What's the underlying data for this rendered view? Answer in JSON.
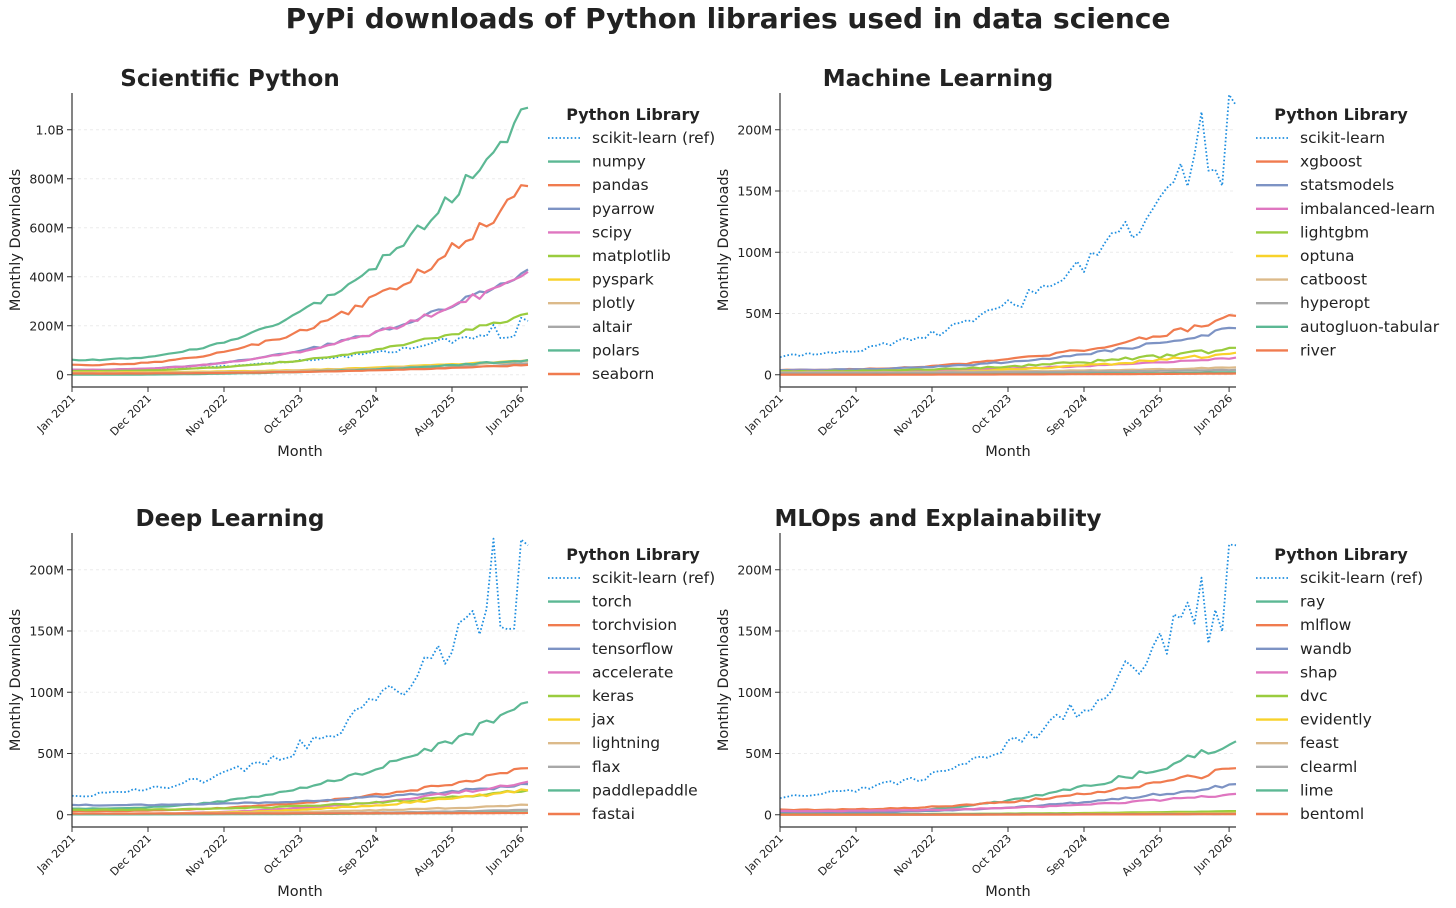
{
  "title": "PyPi downloads of Python libraries used in data science",
  "legend_title": "Python Library",
  "xlabel": "Month",
  "ylabel": "Monthly Downloads",
  "x_ticks": [
    "Jan 2021",
    "Dec 2021",
    "Nov 2022",
    "Oct 2023",
    "Sep 2024",
    "Aug 2025",
    "Jun 2026"
  ],
  "colors": {
    "ref": "#1f8fe0",
    "palette": [
      "#5cb894",
      "#f07b4f",
      "#7d93c4",
      "#df76c0",
      "#9acc3e",
      "#f8d22a",
      "#dcba8a",
      "#a8a8a8"
    ]
  },
  "chart_data": [
    {
      "type": "line",
      "title": "Scientific Python",
      "xlabel": "Month",
      "ylabel": "Monthly Downloads",
      "x_range": [
        "Jan 2021",
        "Jul 2026"
      ],
      "ylim": [
        -50000000,
        1150000000
      ],
      "y_ticks": [
        0,
        200000000,
        400000000,
        600000000,
        800000000,
        1000000000
      ],
      "y_tick_labels": [
        "0",
        "200M",
        "400M",
        "600M",
        "800M",
        "1.0B"
      ],
      "legend_placement": "right",
      "grid": "horizontal",
      "series": [
        {
          "name": "scikit-learn (ref)",
          "color": "#1f8fe0",
          "dash": "dotted",
          "start": 15000000,
          "end": 220000000,
          "noise": 0.1
        },
        {
          "name": "numpy",
          "color": "#5cb894",
          "start": 60000000,
          "end": 1090000000,
          "noise": 0.04
        },
        {
          "name": "pandas",
          "color": "#f07b4f",
          "start": 40000000,
          "end": 770000000,
          "noise": 0.05
        },
        {
          "name": "pyarrow",
          "color": "#7d93c4",
          "start": 20000000,
          "end": 430000000,
          "noise": 0.05
        },
        {
          "name": "scipy",
          "color": "#df76c0",
          "start": 20000000,
          "end": 420000000,
          "noise": 0.05
        },
        {
          "name": "matplotlib",
          "color": "#9acc3e",
          "start": 15000000,
          "end": 250000000,
          "noise": 0.05
        },
        {
          "name": "pyspark",
          "color": "#f8d22a",
          "start": 10000000,
          "end": 60000000,
          "noise": 0.06
        },
        {
          "name": "plotly",
          "color": "#dcba8a",
          "start": 8000000,
          "end": 55000000,
          "noise": 0.06
        },
        {
          "name": "altair",
          "color": "#a8a8a8",
          "start": 4000000,
          "end": 45000000,
          "noise": 0.06
        },
        {
          "name": "polars",
          "color": "#5cb894",
          "start": 100000,
          "end": 60000000,
          "noise": 0.08
        },
        {
          "name": "seaborn",
          "color": "#f07b4f",
          "start": 5000000,
          "end": 40000000,
          "noise": 0.06
        }
      ]
    },
    {
      "type": "line",
      "title": "Machine Learning",
      "xlabel": "Month",
      "ylabel": "Monthly Downloads",
      "x_range": [
        "Jan 2021",
        "Jul 2026"
      ],
      "ylim": [
        -10000000,
        230000000
      ],
      "y_ticks": [
        0,
        50000000,
        100000000,
        150000000,
        200000000
      ],
      "y_tick_labels": [
        "0",
        "50M",
        "100M",
        "150M",
        "200M"
      ],
      "legend_placement": "right",
      "grid": "horizontal",
      "series": [
        {
          "name": "scikit-learn",
          "color": "#1f8fe0",
          "dash": "dotted",
          "start": 15000000,
          "end": 220000000,
          "noise": 0.1
        },
        {
          "name": "xgboost",
          "color": "#f07b4f",
          "start": 4000000,
          "end": 48000000,
          "noise": 0.06
        },
        {
          "name": "statsmodels",
          "color": "#7d93c4",
          "start": 4000000,
          "end": 38000000,
          "noise": 0.06
        },
        {
          "name": "imbalanced-learn",
          "color": "#df76c0",
          "start": 3000000,
          "end": 14000000,
          "noise": 0.06
        },
        {
          "name": "lightgbm",
          "color": "#9acc3e",
          "start": 3000000,
          "end": 22000000,
          "noise": 0.12
        },
        {
          "name": "optuna",
          "color": "#f8d22a",
          "start": 1000000,
          "end": 18000000,
          "noise": 0.1
        },
        {
          "name": "catboost",
          "color": "#dcba8a",
          "start": 2000000,
          "end": 6000000,
          "noise": 0.06
        },
        {
          "name": "hyperopt",
          "color": "#a8a8a8",
          "start": 1500000,
          "end": 4000000,
          "noise": 0.06
        },
        {
          "name": "autogluon-tabular",
          "color": "#5cb894",
          "start": 200000,
          "end": 2000000,
          "noise": 0.06
        },
        {
          "name": "river",
          "color": "#f07b4f",
          "start": 100000,
          "end": 1000000,
          "noise": 0.06
        }
      ]
    },
    {
      "type": "line",
      "title": "Deep Learning",
      "xlabel": "Month",
      "ylabel": "Monthly Downloads",
      "x_range": [
        "Jan 2021",
        "Jul 2026"
      ],
      "ylim": [
        -10000000,
        230000000
      ],
      "y_ticks": [
        0,
        50000000,
        100000000,
        150000000,
        200000000
      ],
      "y_tick_labels": [
        "0",
        "50M",
        "100M",
        "150M",
        "200M"
      ],
      "legend_placement": "right",
      "grid": "horizontal",
      "series": [
        {
          "name": "scikit-learn (ref)",
          "color": "#1f8fe0",
          "dash": "dotted",
          "start": 15000000,
          "end": 220000000,
          "noise": 0.1
        },
        {
          "name": "torch",
          "color": "#5cb894",
          "start": 5000000,
          "end": 92000000,
          "noise": 0.05
        },
        {
          "name": "torchvision",
          "color": "#f07b4f",
          "start": 3000000,
          "end": 38000000,
          "noise": 0.06
        },
        {
          "name": "tensorflow",
          "color": "#7d93c4",
          "start": 8000000,
          "end": 25000000,
          "noise": 0.06
        },
        {
          "name": "accelerate",
          "color": "#df76c0",
          "start": 500000,
          "end": 27000000,
          "noise": 0.06
        },
        {
          "name": "keras",
          "color": "#9acc3e",
          "start": 4000000,
          "end": 20000000,
          "noise": 0.07
        },
        {
          "name": "jax",
          "color": "#f8d22a",
          "start": 500000,
          "end": 20000000,
          "noise": 0.08
        },
        {
          "name": "lightning",
          "color": "#dcba8a",
          "start": 1000000,
          "end": 8000000,
          "noise": 0.08
        },
        {
          "name": "flax",
          "color": "#a8a8a8",
          "start": 300000,
          "end": 4000000,
          "noise": 0.08
        },
        {
          "name": "paddlepaddle",
          "color": "#5cb894",
          "start": 300000,
          "end": 2000000,
          "noise": 0.06
        },
        {
          "name": "fastai",
          "color": "#f07b4f",
          "start": 1000000,
          "end": 1500000,
          "noise": 0.06
        }
      ]
    },
    {
      "type": "line",
      "title": "MLOps and Explainability",
      "xlabel": "Month",
      "ylabel": "Monthly Downloads",
      "x_range": [
        "Jan 2021",
        "Jul 2026"
      ],
      "ylim": [
        -10000000,
        230000000
      ],
      "y_ticks": [
        0,
        50000000,
        100000000,
        150000000,
        200000000
      ],
      "y_tick_labels": [
        "0",
        "50M",
        "100M",
        "150M",
        "200M"
      ],
      "legend_placement": "right",
      "grid": "horizontal",
      "series": [
        {
          "name": "scikit-learn (ref)",
          "color": "#1f8fe0",
          "dash": "dotted",
          "start": 15000000,
          "end": 220000000,
          "noise": 0.1
        },
        {
          "name": "ray",
          "color": "#5cb894",
          "start": 300000,
          "end": 60000000,
          "noise": 0.08
        },
        {
          "name": "mlflow",
          "color": "#f07b4f",
          "start": 4000000,
          "end": 38000000,
          "noise": 0.08
        },
        {
          "name": "wandb",
          "color": "#7d93c4",
          "start": 1500000,
          "end": 25000000,
          "noise": 0.07
        },
        {
          "name": "shap",
          "color": "#df76c0",
          "start": 3000000,
          "end": 17000000,
          "noise": 0.06
        },
        {
          "name": "dvc",
          "color": "#9acc3e",
          "start": 500000,
          "end": 3000000,
          "noise": 0.06
        },
        {
          "name": "evidently",
          "color": "#f8d22a",
          "start": 100000,
          "end": 1500000,
          "noise": 0.06
        },
        {
          "name": "feast",
          "color": "#dcba8a",
          "start": 100000,
          "end": 1000000,
          "noise": 0.06
        },
        {
          "name": "clearml",
          "color": "#a8a8a8",
          "start": 100000,
          "end": 800000,
          "noise": 0.06
        },
        {
          "name": "lime",
          "color": "#5cb894",
          "start": 500000,
          "end": 600000,
          "noise": 0.06
        },
        {
          "name": "bentoml",
          "color": "#f07b4f",
          "start": 100000,
          "end": 500000,
          "noise": 0.06
        }
      ]
    }
  ]
}
